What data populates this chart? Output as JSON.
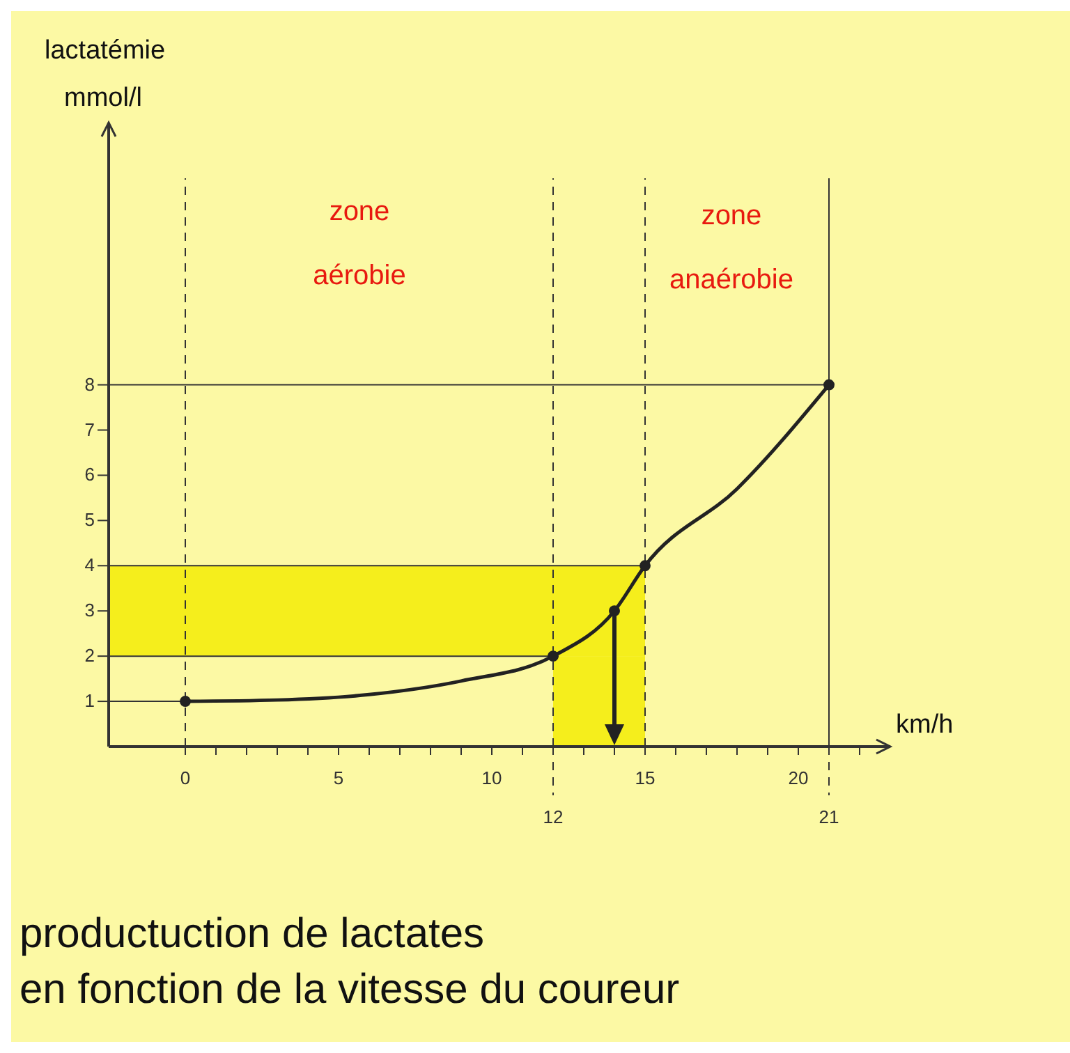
{
  "chart_data": {
    "type": "line",
    "title": "productuction de lactates\nen fonction de la vitesse du coureur",
    "xlabel": "km/h",
    "ylabel": "lactatémie\nmmol/l",
    "xlim": [
      -2.5,
      23
    ],
    "ylim": [
      0,
      13.8
    ],
    "xticks": [
      0,
      {
        "value": 1,
        "label": null
      },
      {
        "value": 2,
        "label": null
      },
      {
        "value": 3,
        "label": null
      },
      {
        "value": 4,
        "label": null
      },
      5,
      {
        "value": 6,
        "label": null
      },
      {
        "value": 7,
        "label": null
      },
      {
        "value": 8,
        "label": null
      },
      {
        "value": 9,
        "label": null
      },
      10,
      {
        "value": 11,
        "label": null
      },
      {
        "value": 12,
        "label": null
      },
      {
        "value": 13,
        "label": null
      },
      {
        "value": 14,
        "label": null
      },
      15,
      {
        "value": 16,
        "label": null
      },
      {
        "value": 17,
        "label": null
      },
      {
        "value": 18,
        "label": null
      },
      {
        "value": 19,
        "label": null
      },
      20,
      {
        "value": 21,
        "label": null
      },
      {
        "value": 22,
        "label": null
      }
    ],
    "yticks": [
      1,
      2,
      3,
      4,
      5,
      6,
      7,
      8
    ],
    "series": [
      {
        "color": "#222222",
        "marker": "none",
        "x": [
          0,
          3,
          6,
          9,
          12,
          14,
          15,
          18,
          21
        ],
        "values": [
          1,
          1.03,
          1.15,
          1.45,
          2,
          3,
          4,
          5.7,
          8
        ]
      },
      {
        "type": "scatter",
        "color": "#222222",
        "marker": "circle",
        "x": [
          0,
          12,
          14,
          15,
          21
        ],
        "values": [
          1,
          2,
          3,
          4,
          8
        ]
      }
    ],
    "line_style": "solid",
    "grid": false,
    "ref_lines": [
      {
        "axis": "x",
        "value": 0,
        "line_style": "dashed"
      },
      {
        "axis": "x",
        "value": 12,
        "label": "12",
        "line_style": "dashed"
      },
      {
        "axis": "x",
        "value": 15,
        "line_style": "dashed"
      },
      {
        "axis": "x",
        "value": 21,
        "label": "21",
        "line_style": "solid"
      },
      {
        "axis": "y",
        "value": 1,
        "line_style": "solid"
      },
      {
        "axis": "y",
        "value": 2,
        "line_style": "solid"
      },
      {
        "axis": "y",
        "value": 4,
        "line_style": "solid"
      },
      {
        "axis": "y",
        "value": 8,
        "line_style": "solid"
      }
    ],
    "bands": [
      {
        "axis": "y",
        "from": 2,
        "to": 4,
        "color": "#f5ee1c"
      },
      {
        "axis": "x",
        "from": 12,
        "to": 15,
        "color": "#f5ee1c"
      }
    ],
    "annotations": [
      "zone aérobie",
      "zone anaérobie"
    ]
  }
}
